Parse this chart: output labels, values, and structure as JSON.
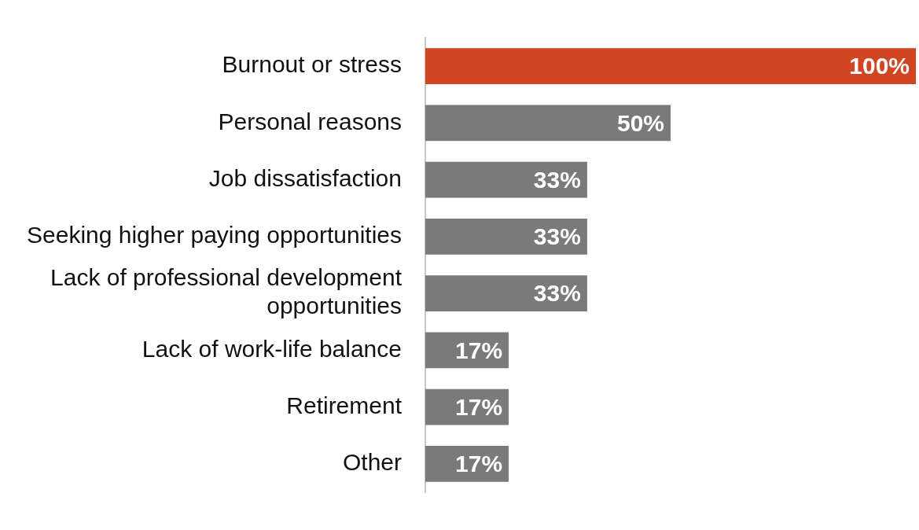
{
  "chart_data": {
    "type": "bar",
    "orientation": "horizontal",
    "categories": [
      "Burnout or stress",
      "Personal reasons",
      "Job dissatisfaction",
      "Seeking higher paying opportunities",
      "Lack of professional development opportunities",
      "Lack of work-life balance",
      "Retirement",
      "Other"
    ],
    "values": [
      100,
      50,
      33,
      33,
      33,
      17,
      17,
      17
    ],
    "colors": [
      "#d24523",
      "#7a7a7a",
      "#7a7a7a",
      "#7a7a7a",
      "#7a7a7a",
      "#7a7a7a",
      "#7a7a7a",
      "#7a7a7a"
    ],
    "value_labels": [
      "100%",
      "50%",
      "33%",
      "33%",
      "33%",
      "17%",
      "17%",
      "17%"
    ],
    "xlim": [
      0,
      100
    ],
    "tick_labels": "y",
    "grid": false,
    "legend": false
  }
}
